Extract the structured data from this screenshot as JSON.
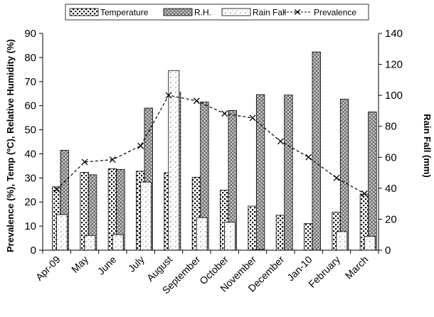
{
  "chart_data": {
    "type": "bar",
    "categories": [
      "Apr-09",
      "May",
      "June",
      "July",
      "August",
      "September",
      "October",
      "November",
      "December",
      "Jan-10",
      "February",
      "March"
    ],
    "series": [
      {
        "name": "Temperature",
        "axis": "left",
        "values": [
          26.3,
          32.3,
          33.8,
          32.8,
          32.2,
          30.3,
          24.9,
          18.3,
          14.5,
          11.1,
          15.8,
          23.3
        ]
      },
      {
        "name": "R.H.",
        "axis": "left",
        "values": [
          41.5,
          31.3,
          33.5,
          59.0,
          65.6,
          61.5,
          58.0,
          64.6,
          64.4,
          82.3,
          62.7,
          57.4
        ]
      },
      {
        "name": "Rain Fall",
        "axis": "right",
        "values": [
          23,
          9.5,
          10,
          44,
          116,
          21,
          18,
          0.5,
          0,
          0,
          12,
          9
        ]
      },
      {
        "name": "Prevalence",
        "axis": "left",
        "type": "line",
        "values": [
          25.2,
          36.6,
          37.6,
          43.3,
          64.3,
          62.0,
          56.7,
          54.9,
          45.2,
          38.6,
          30.0,
          23.5
        ]
      }
    ],
    "ylabel": "Prevalence (%), Temp (ºC), Relative Humidity (%)",
    "y2label": "Rain Fall (mm)",
    "ylim": [
      0,
      90
    ],
    "y2lim": [
      0,
      140
    ],
    "yticks": [
      "0",
      "10",
      "20",
      "30",
      "40",
      "50",
      "60",
      "70",
      "80",
      "90"
    ],
    "y2ticks": [
      "0",
      "20",
      "40",
      "60",
      "80",
      "100",
      "120",
      "140"
    ],
    "legend_position": "top",
    "grid": false
  },
  "colors": {
    "axis": "#000000",
    "bar_stroke": "#000000",
    "temperature_fill": "#ffffff",
    "rh_fill": "#c8c8c8",
    "rainfall_fill": "#ffffff",
    "line": "#000000"
  }
}
